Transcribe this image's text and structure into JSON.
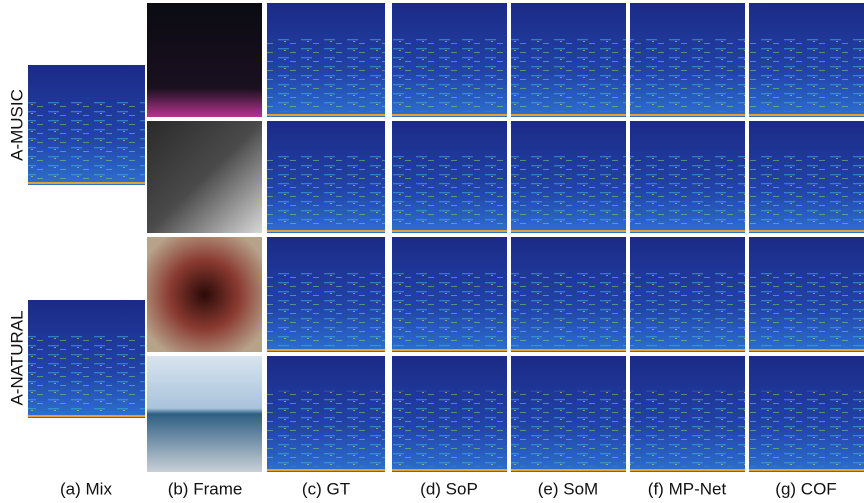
{
  "row_labels": [
    "A-MUSIC",
    "A-NATURAL"
  ],
  "column_labels": [
    "(a) Mix",
    "(b) Frame",
    "(c) GT",
    "(d) SoP",
    "(e) SoM",
    "(f) MP-Net",
    "(g) COF"
  ]
}
